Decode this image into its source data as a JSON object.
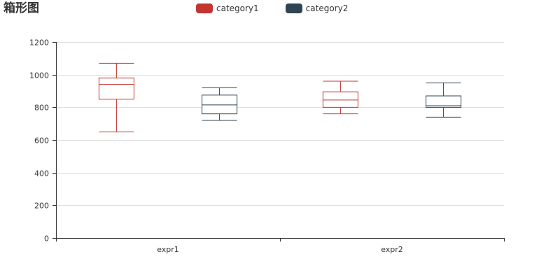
{
  "title": "箱形图",
  "colors": {
    "category1": "#c23531",
    "category2": "#2f4554",
    "grid": "#e0e0e0",
    "axis": "#333333"
  },
  "legend": {
    "items": [
      {
        "name": "category1",
        "color": "#c23531"
      },
      {
        "name": "category2",
        "color": "#2f4554"
      }
    ]
  },
  "chart_data": {
    "type": "boxplot",
    "title": "箱形图",
    "categories": [
      "expr1",
      "expr2"
    ],
    "ylim": [
      0,
      1200
    ],
    "yticks": [
      0,
      200,
      400,
      600,
      800,
      1000,
      1200
    ],
    "grid": true,
    "legend_position": "top-center",
    "series": [
      {
        "name": "category1",
        "color": "#c23531",
        "boxes": [
          {
            "min": 650,
            "q1": 850,
            "median": 940,
            "q3": 980,
            "max": 1070
          },
          {
            "min": 760,
            "q1": 800,
            "median": 845,
            "q3": 895,
            "max": 960
          }
        ]
      },
      {
        "name": "category2",
        "color": "#2f4554",
        "boxes": [
          {
            "min": 720,
            "q1": 760,
            "median": 815,
            "q3": 875,
            "max": 920
          },
          {
            "min": 740,
            "q1": 800,
            "median": 810,
            "q3": 870,
            "max": 950
          }
        ]
      }
    ]
  }
}
